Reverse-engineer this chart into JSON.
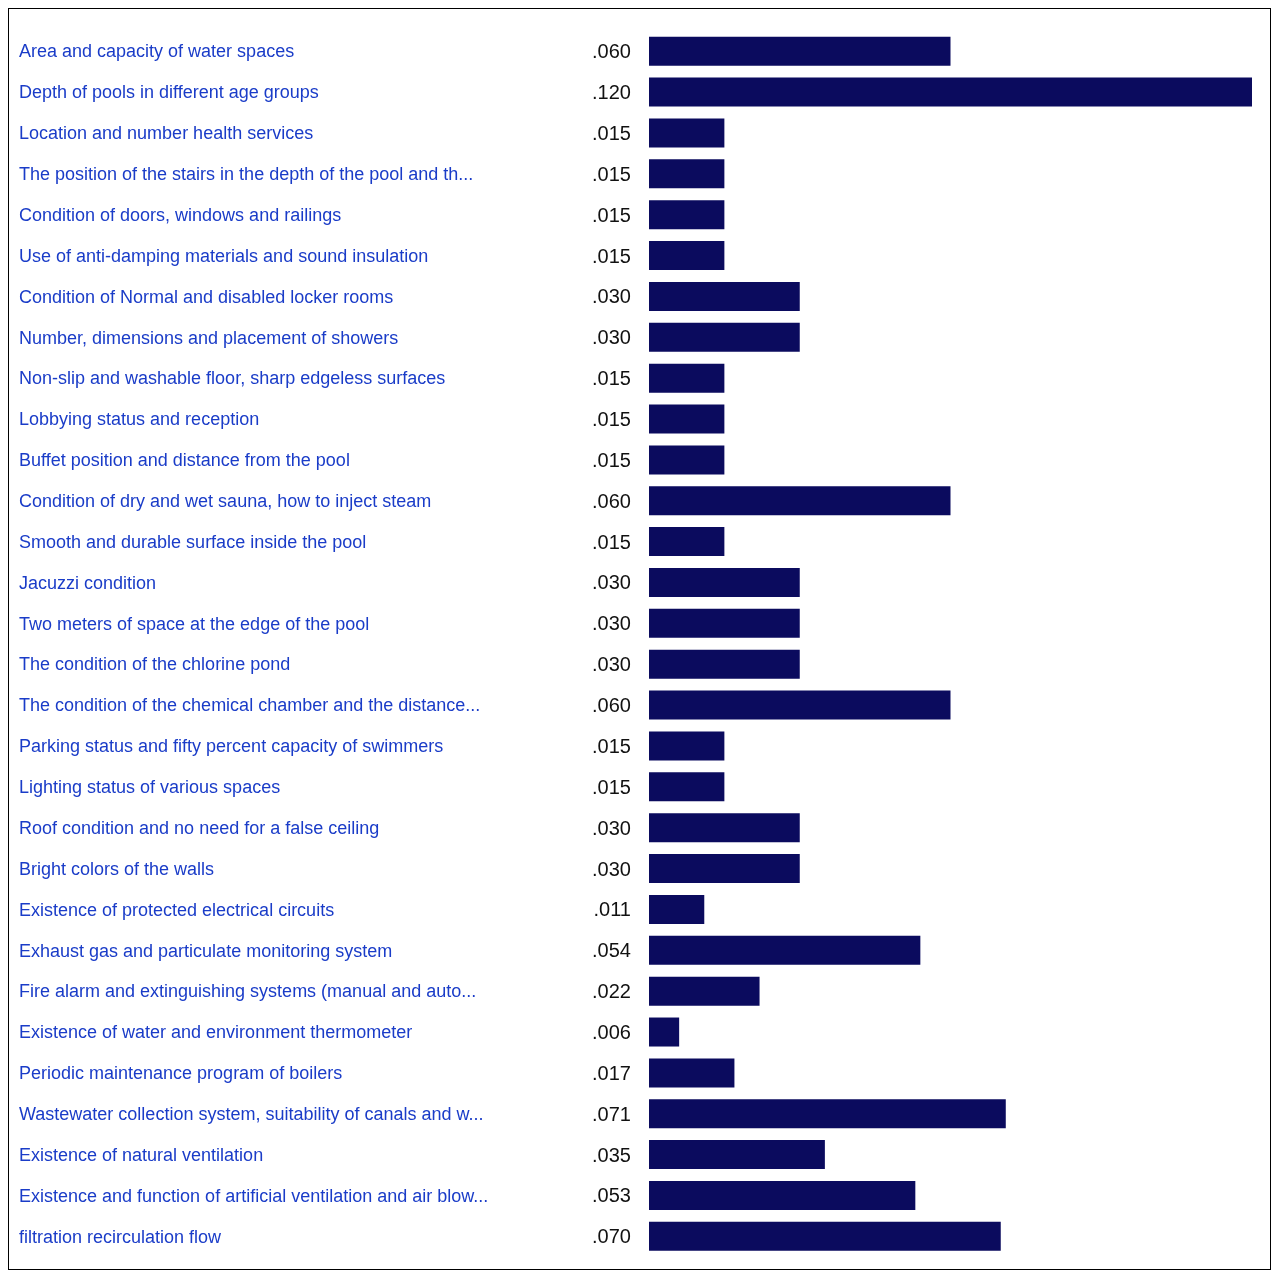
{
  "chart_data": {
    "type": "bar",
    "orientation": "horizontal",
    "categories": [
      "Area and capacity of water spaces",
      "Depth of pools in different age groups",
      "Location and number health services",
      "The position of the stairs in the depth of the pool and th...",
      "Condition of doors, windows and railings",
      "Use of anti-damping materials and sound insulation",
      "Condition of Normal and disabled locker rooms",
      "Number, dimensions and placement of showers",
      "Non-slip and washable floor, sharp edgeless surfaces",
      "Lobbying status and reception",
      "Buffet position and distance from the pool",
      "Condition of dry and wet sauna, how to inject steam",
      "Smooth and durable surface inside the pool",
      "Jacuzzi condition",
      "Two meters of space at the edge of the pool",
      "The condition of the chlorine pond",
      "The condition of the chemical chamber and the distance...",
      "Parking status and fifty percent capacity of swimmers",
      "Lighting status of various spaces",
      "Roof condition and no need for a false ceiling",
      "Bright colors of the walls",
      "Existence of protected electrical circuits",
      "Exhaust gas and particulate monitoring system",
      "Fire alarm and extinguishing systems (manual and auto...",
      "Existence of water and environment thermometer",
      "Periodic maintenance program of boilers",
      "Wastewater collection system, suitability of canals and w...",
      "Existence of natural ventilation",
      "Existence and function of artificial ventilation and air blow...",
      "filtration recirculation flow"
    ],
    "values": [
      0.06,
      0.12,
      0.015,
      0.015,
      0.015,
      0.015,
      0.03,
      0.03,
      0.015,
      0.015,
      0.015,
      0.06,
      0.015,
      0.03,
      0.03,
      0.03,
      0.06,
      0.015,
      0.015,
      0.03,
      0.03,
      0.011,
      0.054,
      0.022,
      0.006,
      0.017,
      0.071,
      0.035,
      0.053,
      0.07
    ],
    "value_labels": [
      ".060",
      ".120",
      ".015",
      ".015",
      ".015",
      ".015",
      ".030",
      ".030",
      ".015",
      ".015",
      ".015",
      ".060",
      ".015",
      ".030",
      ".030",
      ".030",
      ".060",
      ".015",
      ".015",
      ".030",
      ".030",
      ".011",
      ".054",
      ".022",
      ".006",
      ".017",
      ".071",
      ".035",
      ".053",
      ".070"
    ],
    "color": "#0b0b5e",
    "tick_labels": "y"
  }
}
